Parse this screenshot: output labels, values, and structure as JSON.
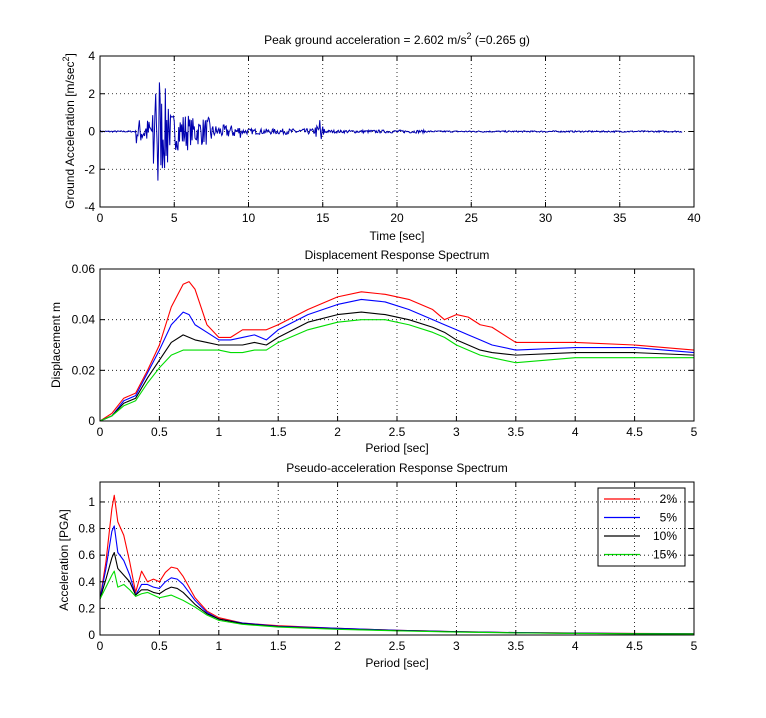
{
  "chart_data": [
    {
      "type": "line",
      "title": "Peak ground acceleration = 2.602 m/s",
      "title_sup": "2",
      "title_tail": " (=0.265 g)",
      "xlabel": "Time [sec]",
      "ylabel": "Ground Acceleration [m/sec",
      "ylabel_sup": "2",
      "ylabel_tail": "]",
      "xlim": [
        0,
        40
      ],
      "ylim": [
        -4,
        4
      ],
      "xticks": [
        0,
        5,
        10,
        15,
        20,
        25,
        30,
        35,
        40
      ],
      "yticks": [
        -4,
        -2,
        0,
        2,
        4
      ],
      "grid": true,
      "color": "#0000b0",
      "segments": [
        {
          "t0": 0,
          "t1": 2.4,
          "amp": 0.04
        },
        {
          "t0": 2.4,
          "t1": 3.4,
          "amp": 0.7
        },
        {
          "t0": 3.4,
          "t1": 4.6,
          "amp": 2.3
        },
        {
          "t0": 4.6,
          "t1": 6.0,
          "amp": 1.0
        },
        {
          "t0": 6.0,
          "t1": 7.5,
          "amp": 0.75
        },
        {
          "t0": 7.5,
          "t1": 9.5,
          "amp": 0.35
        },
        {
          "t0": 9.5,
          "t1": 14.5,
          "amp": 0.15
        },
        {
          "t0": 14.5,
          "t1": 15.2,
          "amp": 0.35
        },
        {
          "t0": 15.2,
          "t1": 22,
          "amp": 0.08
        },
        {
          "t0": 22,
          "t1": 39.2,
          "amp": 0.04
        }
      ],
      "peaks": [
        {
          "t": 4.0,
          "v": 2.602
        },
        {
          "t": 3.9,
          "v": -2.6
        },
        {
          "t": 3.75,
          "v": 2.0
        },
        {
          "t": 4.3,
          "v": -1.3
        },
        {
          "t": 4.6,
          "v": 1.2
        },
        {
          "t": 3.6,
          "v": -1.7
        },
        {
          "t": 14.8,
          "v": 0.6
        },
        {
          "t": 14.9,
          "v": -0.4
        }
      ]
    },
    {
      "type": "line",
      "title": "Displacement Response Spectrum",
      "xlabel": "Period [sec]",
      "ylabel": "Displacement m",
      "xlim": [
        0,
        5
      ],
      "ylim": [
        0,
        0.06
      ],
      "xticks": [
        0,
        0.5,
        1,
        1.5,
        2,
        2.5,
        3,
        3.5,
        4,
        4.5,
        5
      ],
      "yticks": [
        0,
        0.02,
        0.04,
        0.06
      ],
      "grid": true,
      "x": [
        0,
        0.1,
        0.2,
        0.3,
        0.4,
        0.5,
        0.6,
        0.7,
        0.75,
        0.8,
        0.9,
        1.0,
        1.1,
        1.2,
        1.3,
        1.4,
        1.5,
        1.75,
        2.0,
        2.2,
        2.4,
        2.6,
        2.8,
        2.9,
        3.0,
        3.1,
        3.2,
        3.3,
        3.5,
        4.0,
        4.5,
        5.0
      ],
      "series": [
        {
          "name": "2%",
          "color": "#ff0000",
          "values": [
            0,
            0.003,
            0.009,
            0.011,
            0.02,
            0.03,
            0.045,
            0.054,
            0.055,
            0.052,
            0.038,
            0.033,
            0.033,
            0.036,
            0.036,
            0.036,
            0.038,
            0.044,
            0.049,
            0.051,
            0.05,
            0.048,
            0.044,
            0.04,
            0.042,
            0.041,
            0.038,
            0.037,
            0.031,
            0.031,
            0.03,
            0.028
          ]
        },
        {
          "name": "5%",
          "color": "#0000ff",
          "values": [
            0,
            0.002,
            0.008,
            0.01,
            0.019,
            0.028,
            0.038,
            0.043,
            0.042,
            0.038,
            0.035,
            0.032,
            0.032,
            0.033,
            0.034,
            0.032,
            0.036,
            0.042,
            0.046,
            0.048,
            0.047,
            0.044,
            0.04,
            0.038,
            0.036,
            0.034,
            0.032,
            0.03,
            0.028,
            0.029,
            0.029,
            0.027
          ]
        },
        {
          "name": "10%",
          "color": "#000000",
          "values": [
            0,
            0.002,
            0.007,
            0.009,
            0.017,
            0.024,
            0.031,
            0.034,
            0.033,
            0.032,
            0.031,
            0.03,
            0.03,
            0.03,
            0.031,
            0.03,
            0.033,
            0.039,
            0.042,
            0.043,
            0.042,
            0.04,
            0.037,
            0.035,
            0.032,
            0.03,
            0.028,
            0.027,
            0.026,
            0.027,
            0.027,
            0.026
          ]
        },
        {
          "name": "15%",
          "color": "#00dd00",
          "values": [
            0,
            0.002,
            0.006,
            0.008,
            0.015,
            0.021,
            0.026,
            0.028,
            0.028,
            0.028,
            0.028,
            0.028,
            0.027,
            0.027,
            0.028,
            0.028,
            0.031,
            0.036,
            0.039,
            0.04,
            0.04,
            0.038,
            0.035,
            0.033,
            0.03,
            0.028,
            0.026,
            0.025,
            0.023,
            0.025,
            0.025,
            0.025
          ]
        }
      ]
    },
    {
      "type": "line",
      "title": "Pseudo-acceleration Response Spectrum",
      "xlabel": "Period [sec]",
      "ylabel": "Acceleration [PGA]",
      "xlim": [
        0,
        5
      ],
      "ylim": [
        0,
        1.15
      ],
      "xticks": [
        0,
        0.5,
        1,
        1.5,
        2,
        2.5,
        3,
        3.5,
        4,
        4.5,
        5
      ],
      "yticks": [
        0,
        0.2,
        0.4,
        0.6,
        0.8,
        1
      ],
      "grid": true,
      "legend": "top-right",
      "x": [
        0,
        0.05,
        0.1,
        0.12,
        0.15,
        0.2,
        0.25,
        0.3,
        0.35,
        0.4,
        0.45,
        0.5,
        0.55,
        0.6,
        0.65,
        0.7,
        0.8,
        0.9,
        1.0,
        1.2,
        1.5,
        2.0,
        2.5,
        3.0,
        3.5,
        4.0,
        4.5,
        5.0
      ],
      "series": [
        {
          "name": "2%",
          "color": "#ff0000",
          "values": [
            0.27,
            0.55,
            0.95,
            1.05,
            0.85,
            0.75,
            0.55,
            0.32,
            0.48,
            0.4,
            0.42,
            0.4,
            0.47,
            0.51,
            0.5,
            0.44,
            0.28,
            0.18,
            0.13,
            0.09,
            0.07,
            0.05,
            0.035,
            0.025,
            0.018,
            0.015,
            0.012,
            0.01
          ]
        },
        {
          "name": "5%",
          "color": "#0000ff",
          "values": [
            0.27,
            0.5,
            0.78,
            0.82,
            0.62,
            0.56,
            0.45,
            0.3,
            0.38,
            0.38,
            0.36,
            0.35,
            0.4,
            0.43,
            0.42,
            0.38,
            0.26,
            0.17,
            0.12,
            0.09,
            0.065,
            0.05,
            0.035,
            0.025,
            0.018,
            0.014,
            0.011,
            0.009
          ]
        },
        {
          "name": "10%",
          "color": "#000000",
          "values": [
            0.27,
            0.42,
            0.58,
            0.62,
            0.5,
            0.45,
            0.4,
            0.3,
            0.34,
            0.34,
            0.32,
            0.31,
            0.34,
            0.36,
            0.35,
            0.32,
            0.23,
            0.16,
            0.12,
            0.085,
            0.063,
            0.045,
            0.033,
            0.024,
            0.017,
            0.013,
            0.01,
            0.008
          ]
        },
        {
          "name": "15%",
          "color": "#00dd00",
          "values": [
            0.27,
            0.36,
            0.45,
            0.48,
            0.36,
            0.38,
            0.34,
            0.29,
            0.31,
            0.32,
            0.3,
            0.28,
            0.29,
            0.3,
            0.28,
            0.26,
            0.21,
            0.15,
            0.11,
            0.08,
            0.06,
            0.043,
            0.031,
            0.022,
            0.016,
            0.012,
            0.009,
            0.008
          ]
        }
      ]
    }
  ]
}
